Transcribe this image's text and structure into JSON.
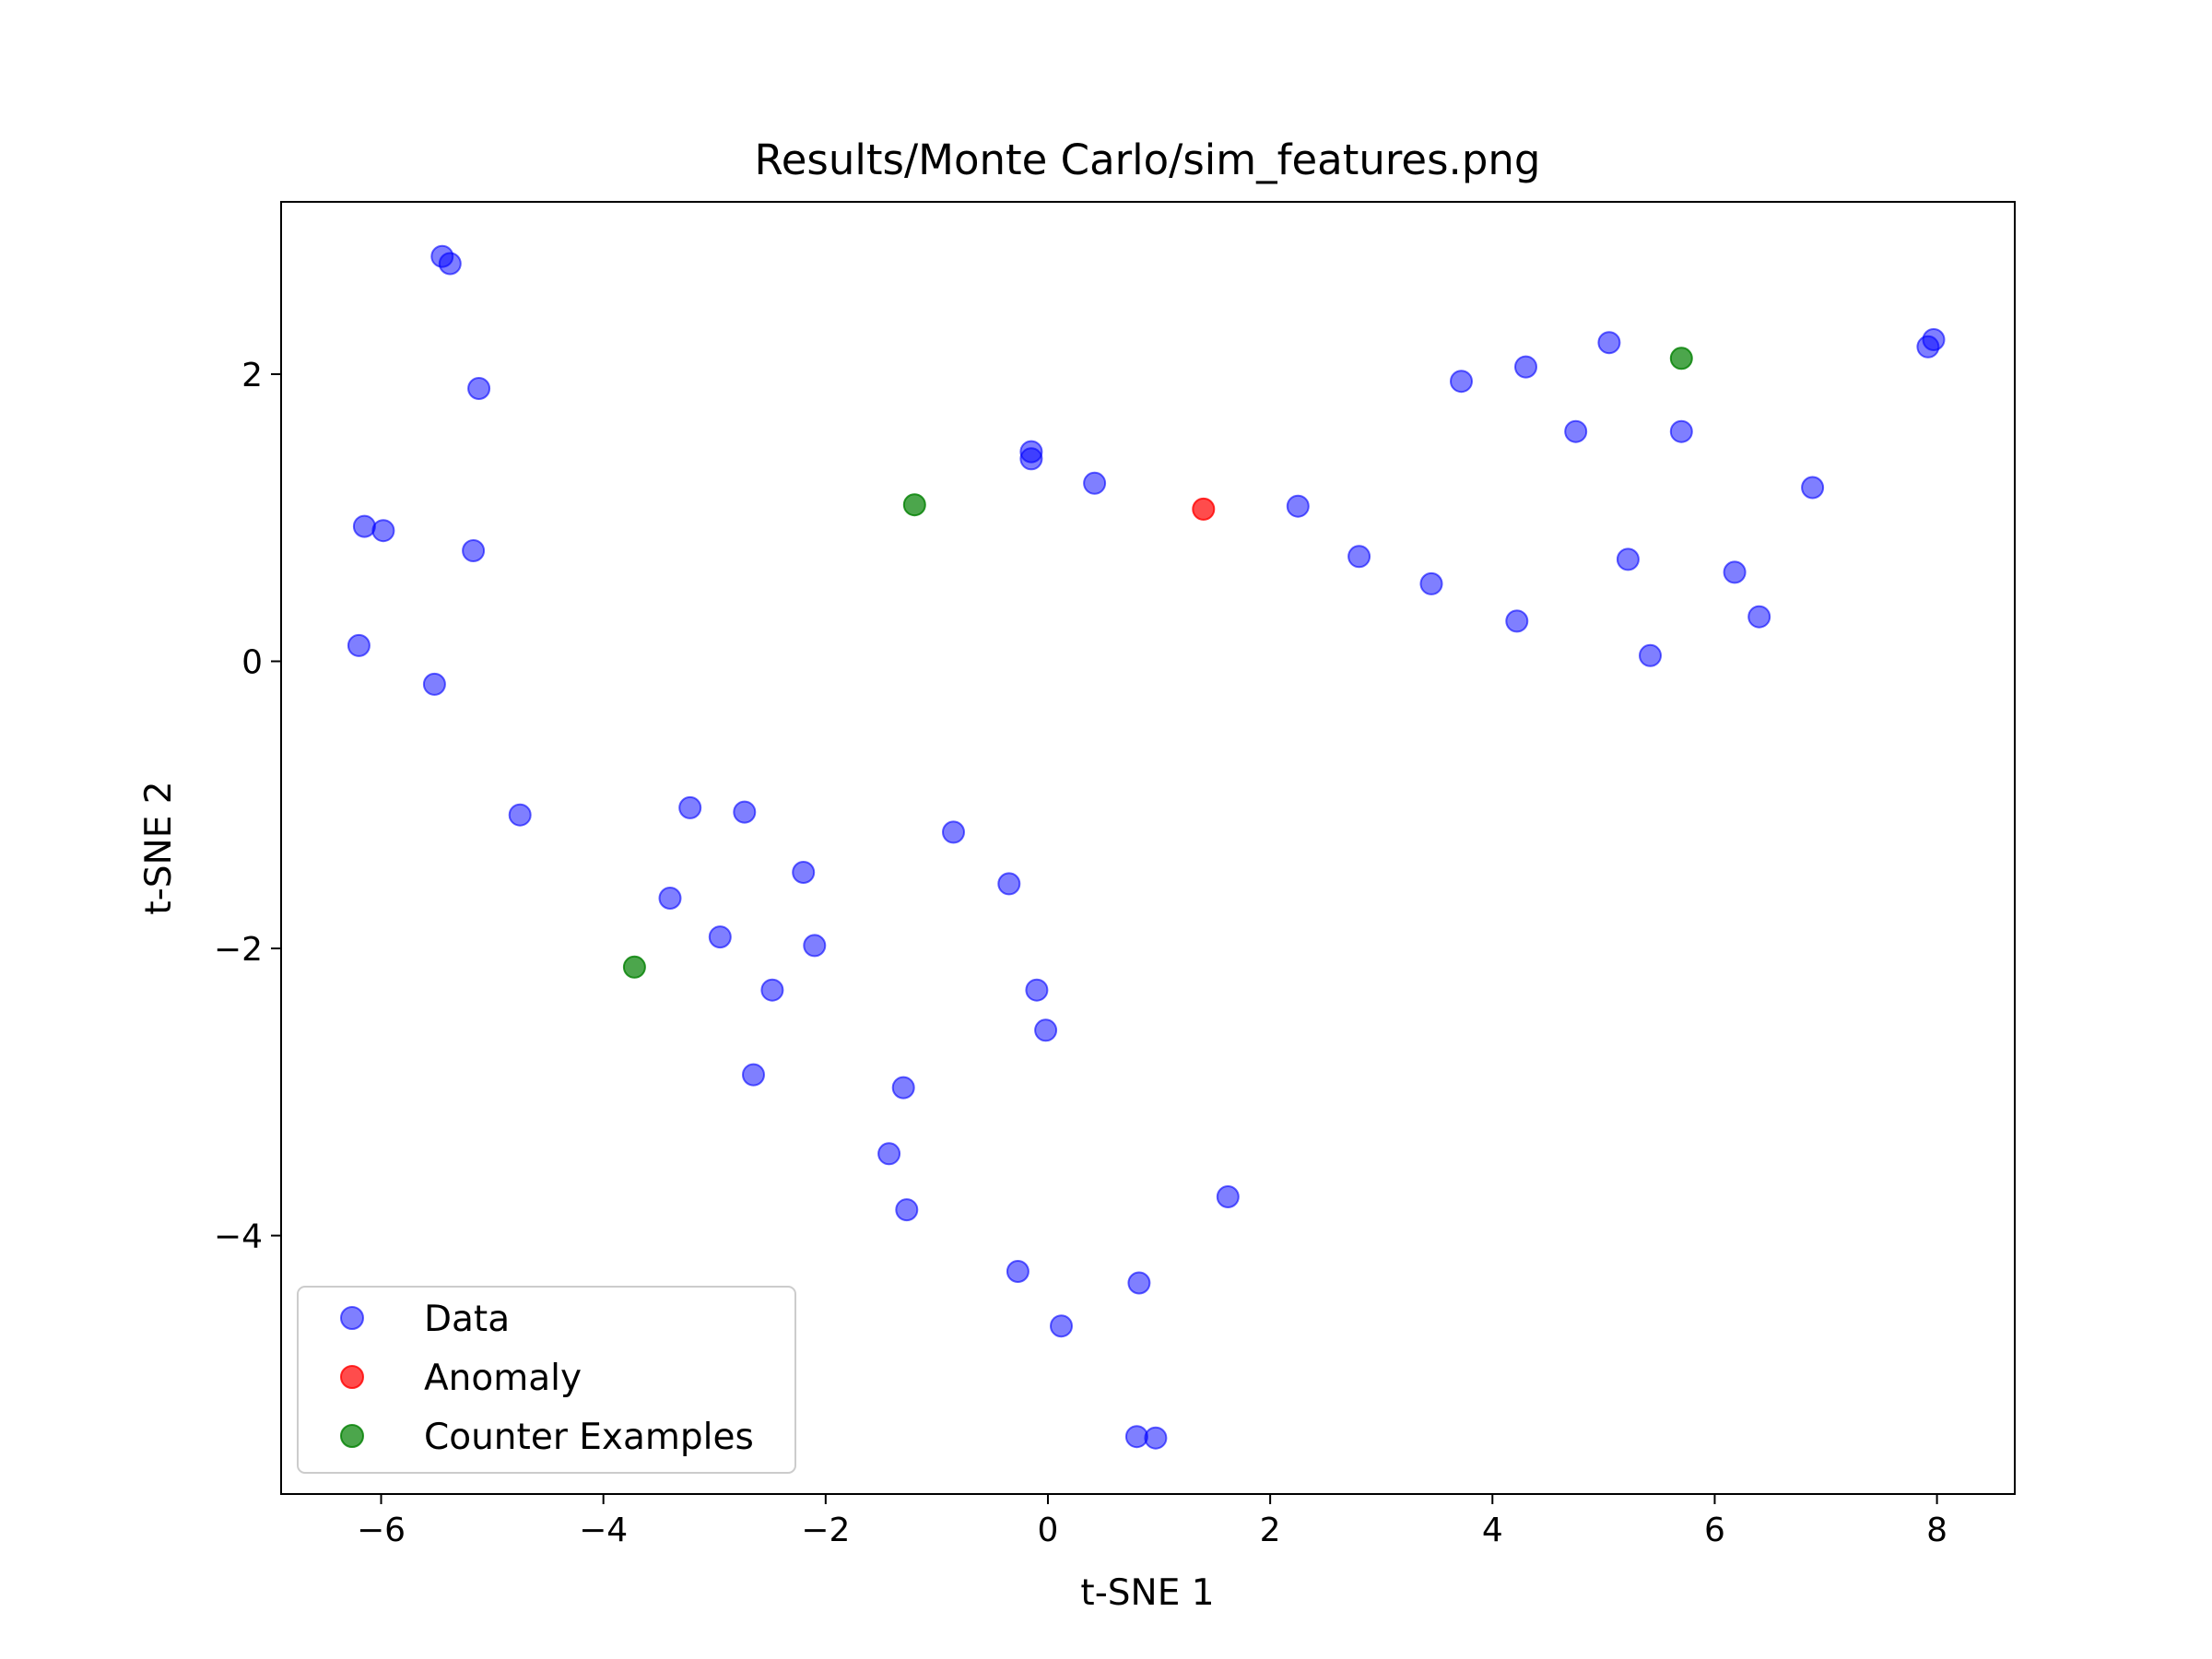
{
  "chart_data": {
    "type": "scatter",
    "title": "Results/Monte Carlo/sim_features.png",
    "xlabel": "t-SNE 1",
    "ylabel": "t-SNE 2",
    "xlim": [
      -6.9,
      8.7
    ],
    "ylim": [
      -5.8,
      3.2
    ],
    "x_ticks": [
      {
        "value": -6,
        "label": "−6"
      },
      {
        "value": -4,
        "label": "−4"
      },
      {
        "value": -2,
        "label": "−2"
      },
      {
        "value": 0,
        "label": "0"
      },
      {
        "value": 2,
        "label": "2"
      },
      {
        "value": 4,
        "label": "4"
      },
      {
        "value": 6,
        "label": "6"
      },
      {
        "value": 8,
        "label": "8"
      }
    ],
    "y_ticks": [
      {
        "value": -4,
        "label": "−4"
      },
      {
        "value": -2,
        "label": "−2"
      },
      {
        "value": 0,
        "label": "0"
      },
      {
        "value": 2,
        "label": "2"
      }
    ],
    "grid": false,
    "legend_position": "bottom-left",
    "series": [
      {
        "name": "Data",
        "color": "#0000ff",
        "alpha": 0.5,
        "points": [
          [
            -5.45,
            2.82
          ],
          [
            -5.38,
            2.77
          ],
          [
            -5.12,
            1.9
          ],
          [
            -6.15,
            0.94
          ],
          [
            -5.98,
            0.91
          ],
          [
            -5.17,
            0.77
          ],
          [
            -6.2,
            0.11
          ],
          [
            -5.52,
            -0.16
          ],
          [
            -4.75,
            -1.07
          ],
          [
            -3.22,
            -1.02
          ],
          [
            -2.73,
            -1.05
          ],
          [
            -3.4,
            -1.65
          ],
          [
            -2.95,
            -1.92
          ],
          [
            -2.2,
            -1.47
          ],
          [
            -2.1,
            -1.98
          ],
          [
            -2.48,
            -2.29
          ],
          [
            -2.65,
            -2.88
          ],
          [
            -0.85,
            -1.19
          ],
          [
            -0.35,
            -1.55
          ],
          [
            -0.1,
            -2.29
          ],
          [
            -0.02,
            -2.57
          ],
          [
            -1.3,
            -2.97
          ],
          [
            -1.43,
            -3.43
          ],
          [
            -1.27,
            -3.82
          ],
          [
            -0.27,
            -4.25
          ],
          [
            0.12,
            -4.63
          ],
          [
            0.82,
            -4.33
          ],
          [
            1.62,
            -3.73
          ],
          [
            0.8,
            -5.4
          ],
          [
            0.97,
            -5.41
          ],
          [
            -0.15,
            1.46
          ],
          [
            -0.15,
            1.41
          ],
          [
            0.42,
            1.24
          ],
          [
            2.25,
            1.08
          ],
          [
            2.8,
            0.73
          ],
          [
            3.45,
            0.54
          ],
          [
            3.72,
            1.95
          ],
          [
            4.3,
            2.05
          ],
          [
            4.22,
            0.28
          ],
          [
            4.75,
            1.6
          ],
          [
            5.05,
            2.22
          ],
          [
            5.22,
            0.71
          ],
          [
            5.42,
            0.04
          ],
          [
            5.7,
            1.6
          ],
          [
            6.18,
            0.62
          ],
          [
            6.4,
            0.31
          ],
          [
            6.88,
            1.21
          ],
          [
            7.92,
            2.19
          ],
          [
            7.97,
            2.24
          ]
        ]
      },
      {
        "name": "Anomaly",
        "color": "#ff0000",
        "alpha": 0.7,
        "points": [
          [
            1.4,
            1.06
          ]
        ]
      },
      {
        "name": "Counter Examples",
        "color": "#008000",
        "alpha": 0.7,
        "points": [
          [
            -1.2,
            1.09
          ],
          [
            5.7,
            2.11
          ],
          [
            -3.72,
            -2.13
          ]
        ]
      }
    ]
  }
}
